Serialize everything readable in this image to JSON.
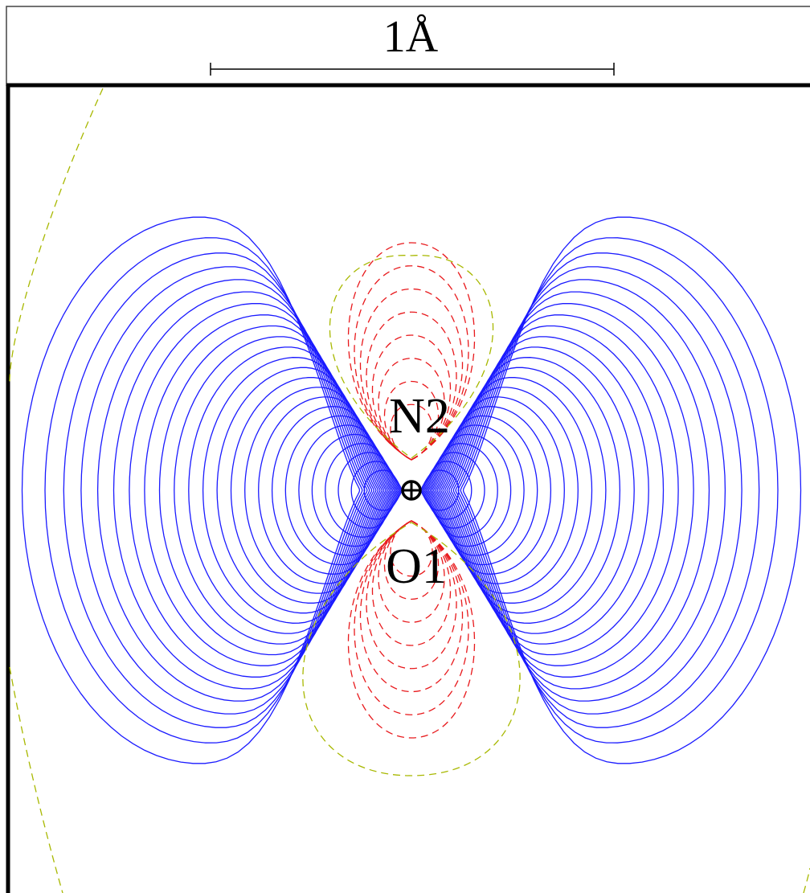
{
  "scale_bar": {
    "label": "1Å"
  },
  "atoms": [
    {
      "id": "n2",
      "label": "N2"
    },
    {
      "id": "o1",
      "label": "O1"
    }
  ],
  "colors": {
    "positive_contour": "#1a1aff",
    "negative_contour": "#e8191c",
    "zero_contour": "#a8b800",
    "frame": "#000000",
    "background": "#ffffff"
  },
  "contours": {
    "positive_style": "solid",
    "negative_style": "dashed",
    "zero_style": "dashed"
  }
}
